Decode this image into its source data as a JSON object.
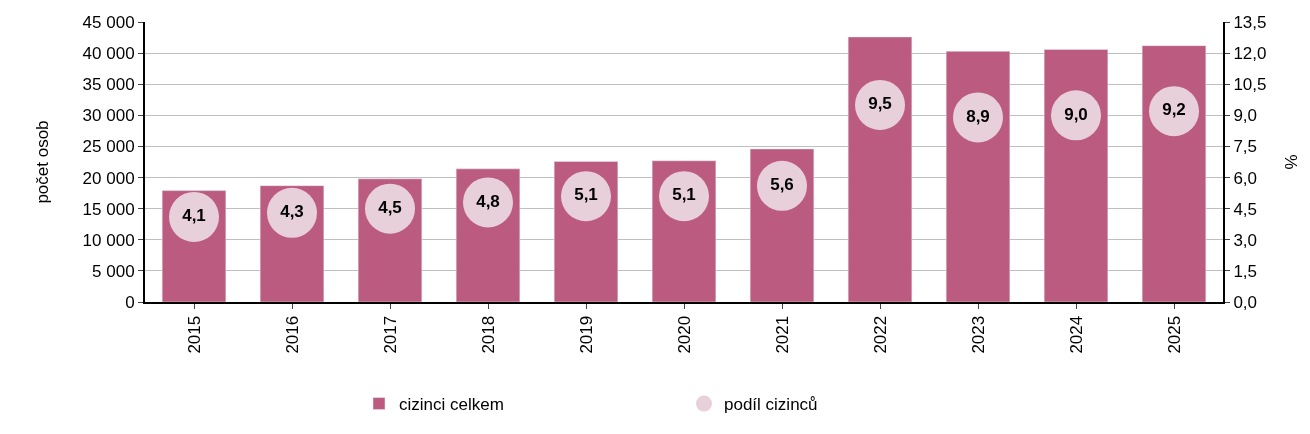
{
  "chart_data": {
    "type": "bar",
    "ylabel": "počet osob",
    "y2label": "%",
    "categories": [
      "2015",
      "2016",
      "2017",
      "2018",
      "2019",
      "2020",
      "2021",
      "2022",
      "2023",
      "2024",
      "2025"
    ],
    "series": [
      {
        "name": "cizinci celkem",
        "color": "#bc5b80",
        "values": [
          17900,
          18700,
          19800,
          21400,
          22600,
          22700,
          24600,
          42600,
          40300,
          40600,
          41200
        ]
      },
      {
        "name": "podíl cizinců",
        "type": "scatter",
        "axis": "y2",
        "color": "#e8d0da",
        "marker": "circle",
        "values": [
          4.1,
          4.3,
          4.5,
          4.8,
          5.1,
          5.1,
          5.6,
          9.5,
          8.9,
          9.0,
          9.2
        ],
        "value_labels": [
          "4,1",
          "4,3",
          "4,5",
          "4,8",
          "5,1",
          "5,1",
          "5,6",
          "9,5",
          "8,9",
          "9,0",
          "9,2"
        ]
      }
    ],
    "ylim": [
      0,
      45000
    ],
    "yticks": [
      0,
      {
        "value": 5000,
        "label": "5 000"
      },
      {
        "value": 10000,
        "label": "10 000"
      },
      {
        "value": 15000,
        "label": "15 000"
      },
      {
        "value": 20000,
        "label": "20 000"
      },
      {
        "value": 25000,
        "label": "25 000"
      },
      {
        "value": 30000,
        "label": "30 000"
      },
      {
        "value": 35000,
        "label": "35 000"
      },
      {
        "value": 40000,
        "label": "40 000"
      },
      {
        "value": 45000,
        "label": "45 000"
      }
    ],
    "y2lim": [
      0,
      13.5
    ],
    "y2ticks": [
      {
        "value": 0,
        "label": "0,0"
      },
      {
        "value": 1.5,
        "label": "1,5"
      },
      {
        "value": 3,
        "label": "3,0"
      },
      {
        "value": 4.5,
        "label": "4,5"
      },
      {
        "value": 6,
        "label": "6,0"
      },
      {
        "value": 7.5,
        "label": "7,5"
      },
      {
        "value": 9,
        "label": "9,0"
      },
      {
        "value": 10.5,
        "label": "10,5"
      },
      {
        "value": 12,
        "label": "12,0"
      },
      {
        "value": 13.5,
        "label": "13,5"
      }
    ],
    "grid": "y",
    "legend": "bottom"
  }
}
